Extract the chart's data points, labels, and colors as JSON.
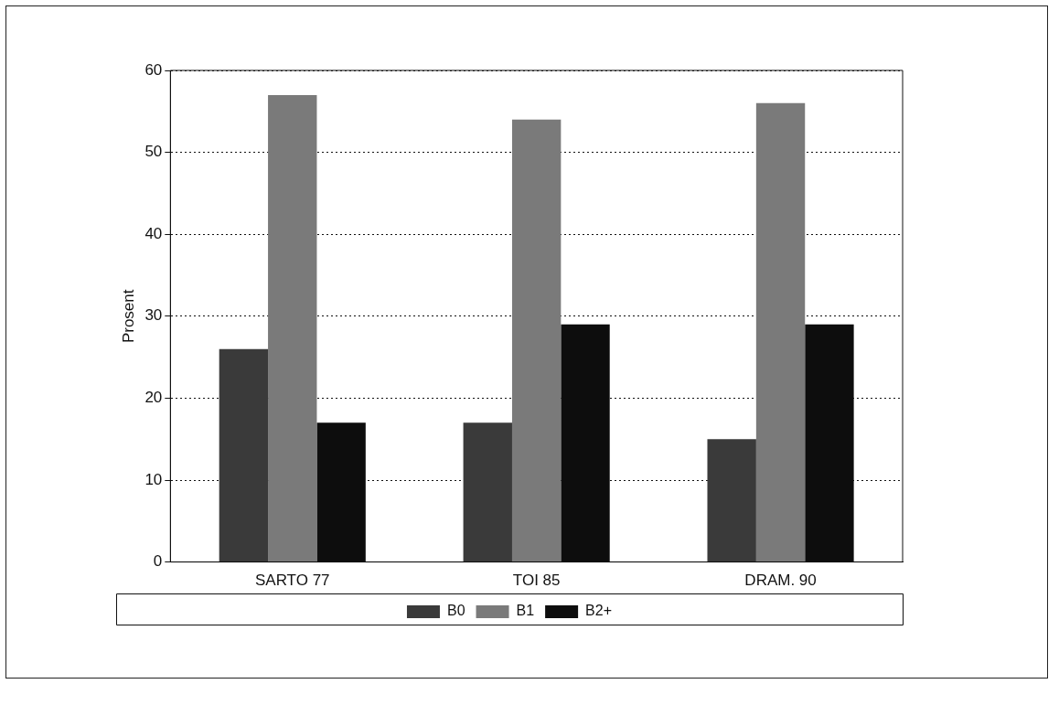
{
  "chart_data": {
    "type": "bar",
    "ylabel": "Prosent",
    "categories": [
      "SARTO 77",
      "TOI 85",
      "DRAM. 90"
    ],
    "series": [
      {
        "name": "B0",
        "color": "#3a3a3a",
        "values": [
          26,
          17,
          15
        ]
      },
      {
        "name": "B1",
        "color": "#7a7a7a",
        "values": [
          57,
          54,
          56
        ]
      },
      {
        "name": "B2+",
        "color": "#0d0d0d",
        "values": [
          17,
          29,
          29
        ]
      }
    ],
    "ylim": [
      0,
      60
    ],
    "yticks": [
      0,
      10,
      20,
      30,
      40,
      50,
      60
    ],
    "grid": "y",
    "legend": "bottom"
  }
}
